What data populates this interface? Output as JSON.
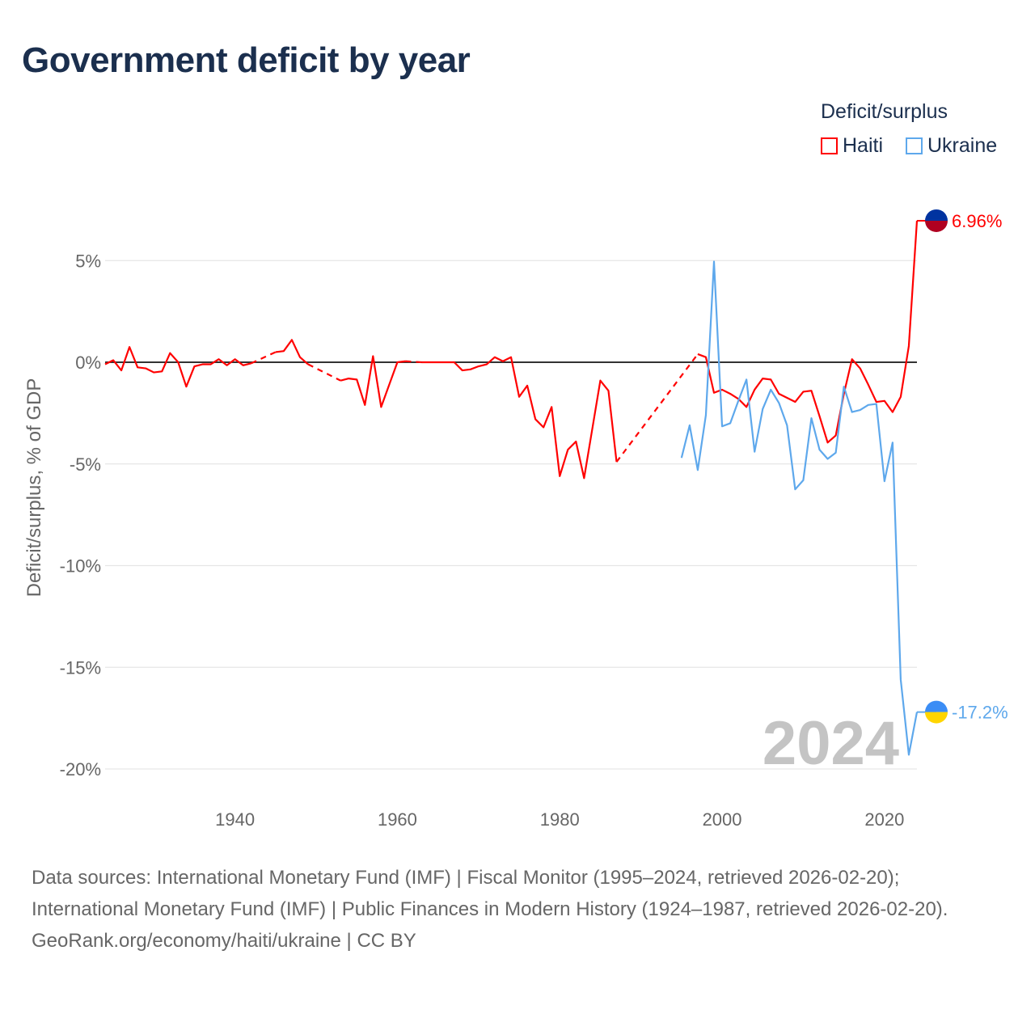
{
  "title": "Government deficit by year",
  "legend": {
    "title": "Deficit/surplus",
    "items": [
      {
        "name": "Haiti",
        "color": "#ff0000"
      },
      {
        "name": "Ukraine",
        "color": "#5ea8ec"
      }
    ]
  },
  "year_label": "2024",
  "end_labels": {
    "haiti": "6.96%",
    "ukraine": "-17.2%"
  },
  "footer": {
    "sources": "Data sources: International Monetary Fund (IMF) | Fiscal Monitor (1995–2024, retrieved 2026-02-20); International Monetary Fund (IMF) | Public Finances in Modern History (1924–1987, retrieved 2026-02-20).",
    "credit": "GeoRank.org/economy/haiti/ukraine | CC BY"
  },
  "chart_data": {
    "type": "line",
    "title": "Government deficit by year",
    "xlabel": "",
    "ylabel": "Deficit/surplus, % of GDP",
    "xlim": [
      1924,
      2024
    ],
    "ylim": [
      -20,
      7
    ],
    "xticks": [
      1940,
      1960,
      1980,
      2000,
      2020
    ],
    "yticks": [
      {
        "v": 5,
        "label": "5%"
      },
      {
        "v": 0,
        "label": "0%"
      },
      {
        "v": -5,
        "label": "-5%"
      },
      {
        "v": -10,
        "label": "-10%"
      },
      {
        "v": -15,
        "label": "-15%"
      },
      {
        "v": -20,
        "label": "-20%"
      }
    ],
    "grid": true,
    "legend_position": "top-right",
    "series": [
      {
        "name": "Haiti",
        "color": "#ff0000",
        "start": 1924,
        "values": [
          -0.1,
          0.1,
          -0.4,
          0.75,
          -0.25,
          -0.3,
          -0.5,
          -0.45,
          0.45,
          0,
          -1.2,
          -0.2,
          -0.1,
          -0.1,
          0.15,
          -0.15,
          0.15,
          -0.15,
          -0.05,
          null,
          null,
          0.5,
          0.55,
          1.1,
          0.25,
          -0.1,
          null,
          null,
          null,
          -0.9,
          -0.8,
          -0.85,
          -2.1,
          0.3,
          -2.2,
          -1.1,
          0,
          0.05,
          null,
          0,
          0,
          0,
          0,
          0,
          -0.4,
          -0.35,
          -0.2,
          -0.1,
          0.25,
          0.05,
          0.25,
          -1.7,
          -1.15,
          -2.8,
          -3.2,
          -2.2,
          -5.6,
          -4.3,
          -3.9,
          -5.7,
          -3.3,
          -0.9,
          -1.4,
          -4.9,
          null,
          null,
          null,
          null,
          null,
          null,
          null,
          null,
          null,
          0.4,
          0.25,
          -1.5,
          -1.35,
          -1.55,
          -1.8,
          -2.2,
          -1.35,
          -0.8,
          -0.85,
          -1.55,
          -1.75,
          -1.95,
          -1.45,
          -1.4,
          -2.65,
          -3.95,
          -3.6,
          -1.55,
          0.15,
          -0.3,
          -1.1,
          -1.95,
          -1.9,
          -2.45,
          -1.7,
          0.8,
          6.96
        ]
      },
      {
        "name": "Ukraine",
        "color": "#5ea8ec",
        "start": 1995,
        "values": [
          -4.7,
          -3.1,
          -5.3,
          -2.6,
          4.95,
          -3.15,
          -3.0,
          -1.9,
          -0.85,
          -4.4,
          -2.3,
          -1.35,
          -2.0,
          -3.1,
          -6.25,
          -5.8,
          -2.75,
          -4.3,
          -4.75,
          -4.45,
          -1.2,
          -2.45,
          -2.35,
          -2.1,
          -2.05,
          -5.85,
          -3.95,
          -15.6,
          -19.3,
          -17.2
        ]
      }
    ]
  }
}
